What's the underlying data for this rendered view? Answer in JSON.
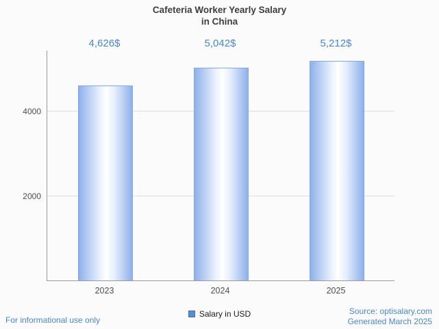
{
  "chart_data": {
    "type": "bar",
    "title": "Cafeteria Worker Yearly Salary in China",
    "title_lines": [
      "Cafeteria Worker Yearly Salary",
      "in China"
    ],
    "categories": [
      "2023",
      "2024",
      "2025"
    ],
    "values": [
      4626,
      5042,
      5212
    ],
    "value_labels": [
      "4,626$",
      "5,042$",
      "5,212$"
    ],
    "series_name": "Salary in USD",
    "xlabel": "",
    "ylabel": "",
    "ylim": [
      0,
      5450
    ],
    "yticks": [
      2000,
      4000
    ],
    "ytick_labels": [
      "2000",
      "4000"
    ],
    "grid": "horizontal",
    "legend": [
      {
        "label": "Salary in USD"
      }
    ],
    "legend_position": "bottom-center"
  },
  "footer": {
    "disclaimer": "For informational use only",
    "source": "Source: optisalary.com",
    "generated": "Generated March 2025"
  },
  "colors": {
    "bg": "#fbfbfb",
    "accent_blue": "#4a86c8",
    "title_text": "#3d3d3d",
    "tick_text": "#4d4d4d",
    "axis": "#9a9a9a",
    "gridline": "#dddddd",
    "bar_edge": "#8fb0ea",
    "bar_border": "#86a7e6",
    "legend_square": "#5b8bd0",
    "legend_square_border": "#3d6db5"
  }
}
